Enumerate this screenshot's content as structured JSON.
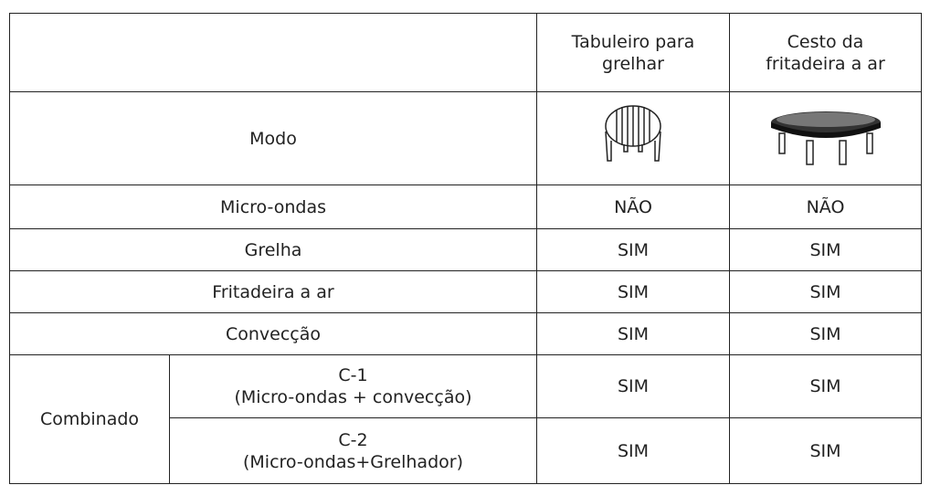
{
  "table": {
    "header": [
      [
        "Tabuleiro para",
        "grelhar"
      ],
      [
        "Cesto da",
        "fritadeira a ar"
      ]
    ],
    "mode_label": "Modo",
    "rows": [
      [
        "Micro-ondas",
        "NÃO",
        "NÃO"
      ],
      [
        "Grelha",
        "SIM",
        "SIM"
      ],
      [
        "Fritadeira a ar",
        "SIM",
        "SIM"
      ],
      [
        "Convecção",
        "SIM",
        "SIM"
      ]
    ],
    "combined": {
      "label": "Combinado",
      "rows": [
        {
          "mode": [
            "C-1",
            "(Micro-ondas + convecção)"
          ],
          "values": [
            "SIM",
            "SIM"
          ]
        },
        {
          "mode": [
            "C-2",
            "(Micro-ondas+Grelhador)"
          ],
          "values": [
            "SIM",
            "SIM"
          ]
        }
      ]
    }
  }
}
